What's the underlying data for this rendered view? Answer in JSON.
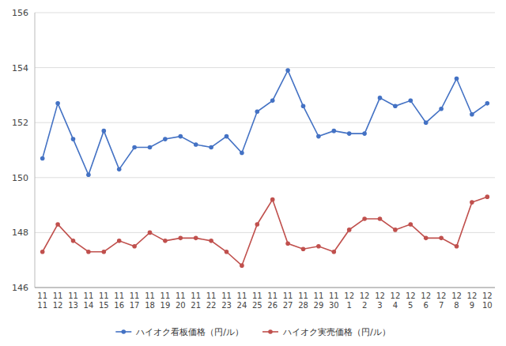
{
  "chart_data": {
    "type": "line",
    "categories": [
      "11\n11",
      "11\n12",
      "11\n13",
      "11\n14",
      "11\n15",
      "11\n16",
      "11\n17",
      "11\n18",
      "11\n19",
      "11\n20",
      "11\n21",
      "11\n22",
      "11\n23",
      "11\n24",
      "11\n25",
      "11\n26",
      "11\n27",
      "11\n28",
      "11\n29",
      "11\n30",
      "12\n1",
      "12\n2",
      "12\n3",
      "12\n4",
      "12\n5",
      "12\n6",
      "12\n7",
      "12\n8",
      "12\n9",
      "12\n10"
    ],
    "series": [
      {
        "name": "ハイオク看板価格（円/ル）",
        "color": "#4472C4",
        "marker": "circle",
        "values": [
          150.7,
          152.7,
          151.4,
          150.1,
          151.7,
          150.3,
          151.1,
          151.1,
          151.4,
          151.5,
          151.2,
          151.1,
          151.5,
          150.9,
          152.4,
          152.8,
          153.9,
          152.6,
          151.5,
          151.7,
          151.6,
          151.6,
          152.9,
          152.6,
          152.8,
          152.0,
          152.5,
          153.6,
          152.3,
          152.7
        ]
      },
      {
        "name": "ハイオク実売価格（円/ル）",
        "color": "#C0504D",
        "marker": "circle",
        "values": [
          147.3,
          148.3,
          147.7,
          147.3,
          147.3,
          147.7,
          147.5,
          148.0,
          147.7,
          147.8,
          147.8,
          147.7,
          147.3,
          146.8,
          148.3,
          149.2,
          147.6,
          147.4,
          147.5,
          147.3,
          148.1,
          148.5,
          148.5,
          148.1,
          148.3,
          147.8,
          147.8,
          147.5,
          149.1,
          149.3
        ]
      }
    ],
    "ylim": [
      146,
      156
    ],
    "yticks": [
      146,
      148,
      150,
      152,
      154,
      156
    ],
    "grid": true,
    "legend": "bottom"
  }
}
